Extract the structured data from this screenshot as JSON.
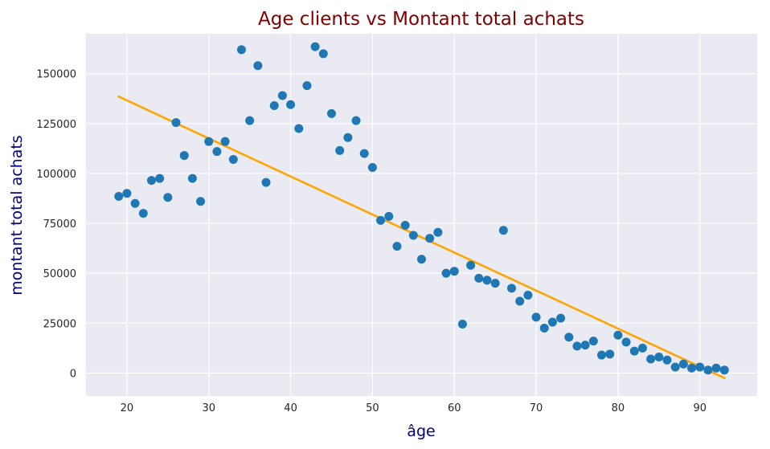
{
  "chart_data": {
    "type": "scatter",
    "title": "Age clients vs Montant total achats",
    "xlabel": "âge",
    "ylabel": "montant total achats",
    "xlim": [
      15,
      97
    ],
    "ylim": [
      -11500,
      170000
    ],
    "grid": true,
    "x_ticks": [
      20,
      30,
      40,
      50,
      60,
      70,
      80,
      90
    ],
    "y_ticks": [
      0,
      25000,
      50000,
      75000,
      100000,
      125000,
      150000
    ],
    "points": [
      [
        19,
        88500
      ],
      [
        20,
        90000
      ],
      [
        21,
        85000
      ],
      [
        22,
        80000
      ],
      [
        23,
        96500
      ],
      [
        24,
        97500
      ],
      [
        25,
        88000
      ],
      [
        26,
        125500
      ],
      [
        27,
        109000
      ],
      [
        28,
        97500
      ],
      [
        29,
        86000
      ],
      [
        30,
        116000
      ],
      [
        31,
        111000
      ],
      [
        32,
        116000
      ],
      [
        33,
        107000
      ],
      [
        34,
        162000
      ],
      [
        35,
        126500
      ],
      [
        36,
        154000
      ],
      [
        37,
        95500
      ],
      [
        38,
        134000
      ],
      [
        39,
        139000
      ],
      [
        40,
        134500
      ],
      [
        41,
        122500
      ],
      [
        42,
        144000
      ],
      [
        43,
        163500
      ],
      [
        44,
        160000
      ],
      [
        45,
        130000
      ],
      [
        46,
        111500
      ],
      [
        47,
        118000
      ],
      [
        48,
        126500
      ],
      [
        49,
        110000
      ],
      [
        50,
        103000
      ],
      [
        51,
        76500
      ],
      [
        52,
        78500
      ],
      [
        53,
        63500
      ],
      [
        54,
        74000
      ],
      [
        55,
        69000
      ],
      [
        56,
        57000
      ],
      [
        57,
        67500
      ],
      [
        58,
        70500
      ],
      [
        59,
        50000
      ],
      [
        60,
        51000
      ],
      [
        61,
        24500
      ],
      [
        62,
        54000
      ],
      [
        63,
        47500
      ],
      [
        64,
        46500
      ],
      [
        65,
        45000
      ],
      [
        66,
        71500
      ],
      [
        67,
        42500
      ],
      [
        68,
        36000
      ],
      [
        69,
        39000
      ],
      [
        70,
        28000
      ],
      [
        71,
        22500
      ],
      [
        72,
        25500
      ],
      [
        73,
        27500
      ],
      [
        74,
        18000
      ],
      [
        75,
        13500
      ],
      [
        76,
        14000
      ],
      [
        77,
        16000
      ],
      [
        78,
        9000
      ],
      [
        79,
        9500
      ],
      [
        80,
        19000
      ],
      [
        81,
        15500
      ],
      [
        82,
        11000
      ],
      [
        83,
        12500
      ],
      [
        84,
        7000
      ],
      [
        85,
        8000
      ],
      [
        86,
        6500
      ],
      [
        87,
        3000
      ],
      [
        88,
        4500
      ],
      [
        89,
        2500
      ],
      [
        90,
        3000
      ],
      [
        91,
        1500
      ],
      [
        92,
        2500
      ],
      [
        93,
        1500
      ]
    ],
    "trend_line": {
      "x": [
        19,
        93
      ],
      "y": [
        138500,
        -2500
      ]
    },
    "colors": {
      "points": "#1f77b4",
      "trend": "#ffa500",
      "background": "#eaeaf2",
      "grid": "#ffffff",
      "title": "#800000",
      "axis_labels": "#00007f"
    }
  }
}
